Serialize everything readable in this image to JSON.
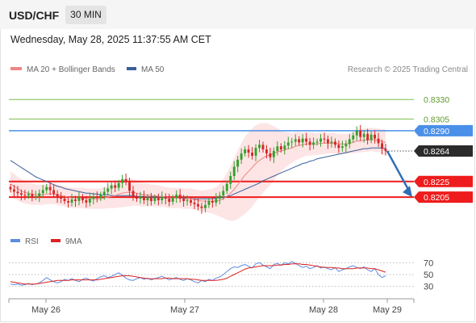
{
  "header": {
    "symbol": "USD/CHF",
    "timeframe": "30 MIN"
  },
  "datetime": "Wednesday, May 28, 2025 11:37:55 AM CET",
  "legend": {
    "ma20": "MA 20 + Bollinger Bands",
    "ma50": "MA 50",
    "credit": "Research © 2025 Trading Central"
  },
  "rsi_legend": {
    "rsi": "RSI",
    "ma9": "9MA"
  },
  "colors": {
    "bullish": "#33a02c",
    "bearish": "#d62728",
    "resistance": "#7cbe4e",
    "support": "#ee1c1c",
    "pivot": "#4a8fe8",
    "ma20": "#f08585",
    "ma50": "#3a5f9a",
    "rsi": "#5b8de0",
    "rsi_ma": "#dd2222",
    "band_fill": "#fde0e0",
    "current_label": "#2b2b2b",
    "arrow": "#2f6fb5"
  },
  "chart_data": [
    {
      "type": "candlestick",
      "title": "USD/CHF",
      "timeframe": "30 MIN",
      "ylim": [
        0.817,
        0.8355
      ],
      "x_ticks": [
        "May 26",
        "May 27",
        "May 28",
        "May 29"
      ],
      "levels": [
        {
          "value": 0.833,
          "label": "0.8330",
          "role": "resistance",
          "style": "thin"
        },
        {
          "value": 0.8305,
          "label": "0.8305",
          "role": "resistance",
          "style": "thin"
        },
        {
          "value": 0.829,
          "label": "0.8290",
          "role": "pivot",
          "style": "flag"
        },
        {
          "value": 0.8264,
          "label": "0.8264",
          "role": "current",
          "style": "dotted"
        },
        {
          "value": 0.8225,
          "label": "0.8225",
          "role": "support",
          "style": "flag"
        },
        {
          "value": 0.8205,
          "label": "0.8205",
          "role": "support",
          "style": "flag"
        }
      ],
      "closes": [
        0.8215,
        0.8212,
        0.821,
        0.8208,
        0.8207,
        0.8209,
        0.8206,
        0.8206,
        0.821,
        0.8214,
        0.8218,
        0.8214,
        0.8209,
        0.8205,
        0.8203,
        0.82,
        0.8198,
        0.8202,
        0.82,
        0.8205,
        0.8201,
        0.8198,
        0.8203,
        0.8206,
        0.8204,
        0.8208,
        0.8212,
        0.8216,
        0.822,
        0.8217,
        0.8223,
        0.8228,
        0.8225,
        0.8213,
        0.8206,
        0.8203,
        0.8206,
        0.8201,
        0.8204,
        0.82,
        0.8204,
        0.8201,
        0.8205,
        0.8203,
        0.8199,
        0.8204,
        0.8208,
        0.8203,
        0.82,
        0.8201,
        0.8198,
        0.8196,
        0.8193,
        0.8191,
        0.8195,
        0.82,
        0.8198,
        0.8203,
        0.8207,
        0.8213,
        0.8222,
        0.8232,
        0.8244,
        0.8253,
        0.8261,
        0.8266,
        0.8262,
        0.8258,
        0.8268,
        0.8272,
        0.8266,
        0.8261,
        0.8256,
        0.8264,
        0.827,
        0.8266,
        0.8271,
        0.8275,
        0.8276,
        0.8279,
        0.8275,
        0.828,
        0.8276,
        0.8272,
        0.8275,
        0.8276,
        0.828,
        0.8279,
        0.8274,
        0.8276,
        0.8272,
        0.8268,
        0.827,
        0.8273,
        0.8279,
        0.8284,
        0.829,
        0.8282,
        0.8286,
        0.8278,
        0.8285,
        0.828,
        0.8274,
        0.8267,
        0.8264
      ],
      "ma20": [
        0.8222,
        0.8219,
        0.8216,
        0.8213,
        0.8211,
        0.821,
        0.8209,
        0.8208,
        0.8208,
        0.8208,
        0.8209,
        0.8209,
        0.8209,
        0.8208,
        0.8207,
        0.8206,
        0.8205,
        0.8204,
        0.8204,
        0.8204,
        0.8204,
        0.8203,
        0.8203,
        0.8203,
        0.8203,
        0.8203,
        0.8204,
        0.8205,
        0.8206,
        0.8207,
        0.8209,
        0.821,
        0.8211,
        0.8211,
        0.8211,
        0.821,
        0.8209,
        0.8208,
        0.8208,
        0.8207,
        0.8207,
        0.8206,
        0.8206,
        0.8205,
        0.8204,
        0.8204,
        0.8204,
        0.8204,
        0.8203,
        0.8203,
        0.8203,
        0.8202,
        0.8201,
        0.82,
        0.82,
        0.82,
        0.82,
        0.82,
        0.8201,
        0.8203,
        0.8206,
        0.821,
        0.8215,
        0.8221,
        0.8227,
        0.8233,
        0.8238,
        0.8243,
        0.8248,
        0.8252,
        0.8255,
        0.8258,
        0.8259,
        0.8261,
        0.8263,
        0.8264,
        0.8265,
        0.8267,
        0.8268,
        0.827,
        0.8271,
        0.8272,
        0.8273,
        0.8273,
        0.8273,
        0.8273,
        0.8274,
        0.8274,
        0.8274,
        0.8274,
        0.8274,
        0.8273,
        0.8273,
        0.8273,
        0.8274,
        0.8275,
        0.8277,
        0.8277,
        0.8278,
        0.8278,
        0.8279,
        0.8278,
        0.8278,
        0.8276,
        0.8275
      ],
      "ma50": [
        0.8252,
        0.8249,
        0.8246,
        0.8243,
        0.824,
        0.8237,
        0.8234,
        0.8231,
        0.8229,
        0.8227,
        0.8225,
        0.8223,
        0.8221,
        0.8219,
        0.8218,
        0.8216,
        0.8215,
        0.8214,
        0.8213,
        0.8212,
        0.8211,
        0.821,
        0.821,
        0.8209,
        0.8209,
        0.8208,
        0.8208,
        0.8208,
        0.8207,
        0.8207,
        0.8207,
        0.8207,
        0.8207,
        0.8207,
        0.8207,
        0.8206,
        0.8206,
        0.8206,
        0.8205,
        0.8205,
        0.8205,
        0.8205,
        0.8205,
        0.8204,
        0.8204,
        0.8204,
        0.8204,
        0.8204,
        0.8204,
        0.8203,
        0.8203,
        0.8203,
        0.8203,
        0.8203,
        0.8203,
        0.8203,
        0.8203,
        0.8204,
        0.8204,
        0.8205,
        0.8206,
        0.8207,
        0.8209,
        0.8211,
        0.8213,
        0.8215,
        0.8217,
        0.8219,
        0.8221,
        0.8223,
        0.8226,
        0.8228,
        0.823,
        0.8232,
        0.8234,
        0.8236,
        0.8238,
        0.824,
        0.8242,
        0.8244,
        0.8246,
        0.8248,
        0.8249,
        0.8251,
        0.8252,
        0.8254,
        0.8255,
        0.8256,
        0.8257,
        0.8258,
        0.8259,
        0.826,
        0.8261,
        0.8262,
        0.8263,
        0.8264,
        0.8265,
        0.8266,
        0.8267,
        0.8267,
        0.8268,
        0.8268,
        0.8268,
        0.8268,
        0.8267
      ],
      "bollinger_half_width": [
        0.0016,
        0.0016,
        0.0015,
        0.0015,
        0.0014,
        0.0014,
        0.0014,
        0.0013,
        0.0013,
        0.0013,
        0.0013,
        0.0013,
        0.0013,
        0.0013,
        0.0013,
        0.0013,
        0.0013,
        0.0013,
        0.0013,
        0.0013,
        0.0013,
        0.0013,
        0.0013,
        0.0013,
        0.0013,
        0.0013,
        0.0014,
        0.0014,
        0.0015,
        0.0016,
        0.0017,
        0.0018,
        0.0018,
        0.0018,
        0.0017,
        0.0016,
        0.0016,
        0.0015,
        0.0015,
        0.0014,
        0.0014,
        0.0014,
        0.0013,
        0.0013,
        0.0013,
        0.0013,
        0.0013,
        0.0013,
        0.0013,
        0.0013,
        0.0013,
        0.0013,
        0.0013,
        0.0013,
        0.0014,
        0.0015,
        0.0016,
        0.0018,
        0.0021,
        0.0025,
        0.003,
        0.0035,
        0.004,
        0.0044,
        0.0047,
        0.0049,
        0.005,
        0.005,
        0.0049,
        0.0047,
        0.0045,
        0.0042,
        0.0039,
        0.0035,
        0.003,
        0.0026,
        0.0023,
        0.0021,
        0.0019,
        0.0018,
        0.0017,
        0.0016,
        0.0015,
        0.0015,
        0.0014,
        0.0014,
        0.0014,
        0.0014,
        0.0013,
        0.0013,
        0.0013,
        0.0013,
        0.0013,
        0.0013,
        0.0013,
        0.0014,
        0.0015,
        0.0015,
        0.0015,
        0.0015,
        0.0015,
        0.0015,
        0.0015,
        0.0016,
        0.0017
      ],
      "forecast_arrow": {
        "from": 0.8264,
        "to": 0.8205
      }
    },
    {
      "type": "line",
      "title": "RSI",
      "ylim": [
        20,
        80
      ],
      "y_ticks": [
        70,
        50,
        30
      ],
      "series": [
        {
          "name": "RSI",
          "values": [
            34,
            33,
            34,
            32,
            33,
            35,
            33,
            34,
            36,
            40,
            45,
            41,
            38,
            36,
            38,
            42,
            40,
            43,
            40,
            38,
            42,
            44,
            41,
            39,
            43,
            46,
            48,
            45,
            47,
            50,
            53,
            49,
            44,
            41,
            40,
            43,
            45,
            42,
            44,
            41,
            43,
            45,
            47,
            44,
            41,
            43,
            45,
            42,
            40,
            43,
            41,
            38,
            36,
            40,
            38,
            42,
            40,
            44,
            46,
            50,
            55,
            60,
            63,
            62,
            65,
            67,
            64,
            61,
            68,
            70,
            66,
            63,
            60,
            67,
            69,
            66,
            70,
            68,
            72,
            69,
            65,
            62,
            64,
            60,
            62,
            65,
            61,
            63,
            60,
            58,
            62,
            55,
            58,
            60,
            63,
            65,
            62,
            60,
            63,
            58,
            55,
            60,
            50,
            45,
            48
          ]
        },
        {
          "name": "9MA",
          "values": [
            38,
            37,
            36,
            35,
            34,
            34,
            34,
            34,
            35,
            36,
            37,
            38,
            39,
            40,
            40,
            40,
            40,
            41,
            41,
            41,
            41,
            41,
            41,
            41,
            41,
            42,
            43,
            44,
            45,
            46,
            47,
            48,
            48,
            48,
            47,
            46,
            45,
            44,
            43,
            43,
            43,
            43,
            43,
            44,
            44,
            43,
            43,
            43,
            43,
            43,
            42,
            42,
            41,
            40,
            40,
            40,
            40,
            40,
            41,
            42,
            44,
            47,
            50,
            53,
            56,
            59,
            61,
            62,
            63,
            64,
            65,
            65,
            65,
            65,
            66,
            66,
            67,
            67,
            68,
            68,
            68,
            67,
            67,
            66,
            65,
            64,
            63,
            62,
            62,
            62,
            61,
            61,
            60,
            60,
            60,
            60,
            61,
            61,
            61,
            61,
            60,
            60,
            58,
            56,
            54
          ]
        }
      ]
    }
  ]
}
